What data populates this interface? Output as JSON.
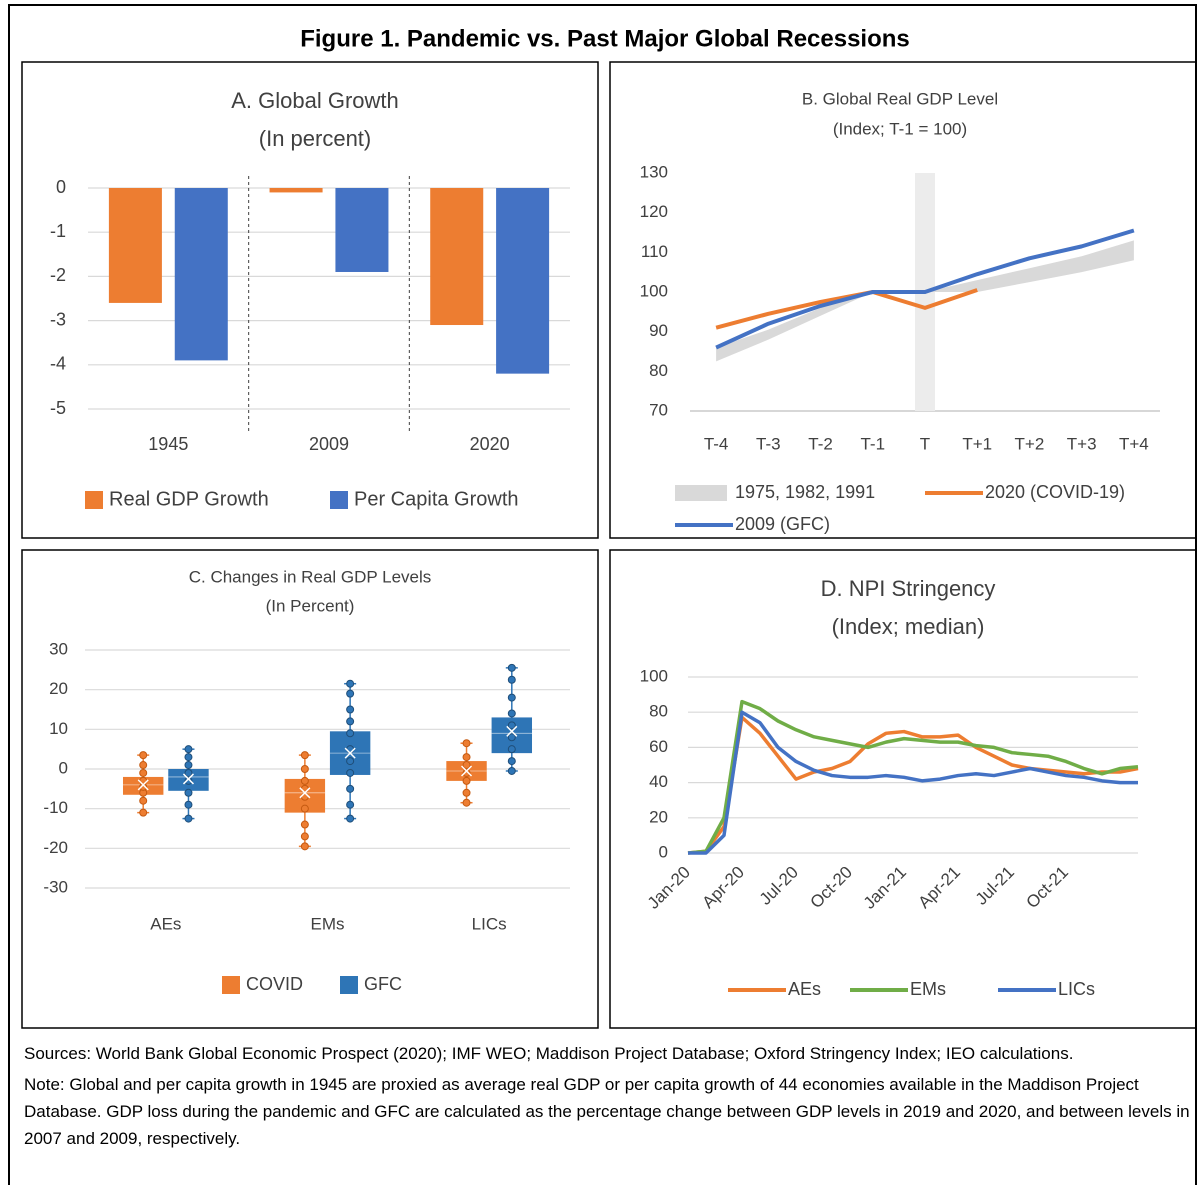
{
  "title": "Figure 1. Pandemic vs. Past Major Global Recessions",
  "chart_data": [
    {
      "type": "bar",
      "title": "A. Global Growth",
      "subtitle": "(In percent)",
      "categories": [
        "1945",
        "2009",
        "2020"
      ],
      "series": [
        {
          "name": "Real GDP Growth",
          "color": "#ED7D31",
          "values": [
            -2.6,
            -0.1,
            -3.1
          ]
        },
        {
          "name": "Per Capita Growth",
          "color": "#4472C4",
          "values": [
            -3.9,
            -1.9,
            -4.2
          ]
        }
      ],
      "ylim": [
        -5,
        0
      ],
      "yticks": [
        0,
        -1,
        -2,
        -3,
        -4,
        -5
      ],
      "grid": true,
      "dividers": true
    },
    {
      "type": "line",
      "title": "B. Global Real GDP Level",
      "subtitle": "(Index; T-1 = 100)",
      "categories": [
        "T-4",
        "T-3",
        "T-2",
        "T-1",
        "T",
        "T+1",
        "T+2",
        "T+3",
        "T+4"
      ],
      "series": [
        {
          "name": "1975, 1982, 1991",
          "color": "#D9D9D9",
          "low": [
            82.5,
            88,
            94,
            100,
            100,
            100,
            102.5,
            105,
            108
          ],
          "high": [
            86,
            90.5,
            96,
            100,
            100,
            103,
            106,
            109,
            113
          ]
        },
        {
          "name": "2020 (COVID-19)",
          "color": "#ED7D31",
          "values": [
            91,
            94.5,
            97.5,
            100,
            96,
            100.5,
            null,
            null,
            null
          ]
        },
        {
          "name": "2009 (GFC)",
          "color": "#4472C4",
          "values": [
            86,
            92,
            96.5,
            100,
            100,
            104.5,
            108.5,
            111.5,
            115.5
          ]
        }
      ],
      "ylim": [
        70,
        130
      ],
      "yticks": [
        70,
        80,
        90,
        100,
        110,
        120,
        130
      ],
      "grid": false,
      "highlight_index": 4
    },
    {
      "type": "box",
      "title": "C. Changes in Real GDP Levels",
      "subtitle": "(In Percent)",
      "categories": [
        "AEs",
        "EMs",
        "LICs"
      ],
      "series": [
        {
          "name": "COVID",
          "color": "#ED7D31",
          "values": [
            {
              "min": -11,
              "q1": -6.5,
              "median": -4,
              "q3": -2,
              "max": 3.5,
              "mean": -4,
              "points": [
                -11,
                -8,
                -6,
                -4.5,
                -3,
                -1,
                1,
                3.5
              ]
            },
            {
              "min": -19.5,
              "q1": -11,
              "median": -6,
              "q3": -2.5,
              "max": 3.5,
              "mean": -6,
              "points": [
                -19.5,
                -17,
                -14,
                -10,
                -7,
                -5,
                -3,
                0,
                3.5
              ]
            },
            {
              "min": -8.5,
              "q1": -3,
              "median": -0.5,
              "q3": 2,
              "max": 6.5,
              "mean": -0.5,
              "points": [
                -8.5,
                -6,
                -3,
                -1,
                1,
                3,
                6.5
              ]
            }
          ]
        },
        {
          "name": "GFC",
          "color": "#2E75B6",
          "values": [
            {
              "min": -12.5,
              "q1": -5.5,
              "median": -2,
              "q3": 0,
              "max": 5,
              "mean": -2.5,
              "points": [
                -12.5,
                -9,
                -6,
                -3,
                -1,
                1,
                3,
                5
              ]
            },
            {
              "min": -12.5,
              "q1": -1.5,
              "median": 4,
              "q3": 9.5,
              "max": 21.5,
              "mean": 4,
              "points": [
                -12.5,
                -9,
                -5,
                -1,
                2,
                5,
                9,
                12,
                15,
                19,
                21.5
              ]
            },
            {
              "min": -0.5,
              "q1": 4,
              "median": 9,
              "q3": 13,
              "max": 25.5,
              "mean": 9.5,
              "points": [
                -0.5,
                2,
                5,
                8,
                11,
                14,
                18,
                22.5,
                25.5
              ]
            }
          ]
        }
      ],
      "ylim": [
        -30,
        30
      ],
      "yticks": [
        30,
        20,
        10,
        0,
        -10,
        -20,
        -30
      ],
      "grid": true
    },
    {
      "type": "line",
      "title": "D. NPI Stringency",
      "subtitle": "(Index; median)",
      "x": [
        "Jan-20",
        "Feb-20",
        "Mar-20",
        "Apr-20",
        "May-20",
        "Jun-20",
        "Jul-20",
        "Aug-20",
        "Sep-20",
        "Oct-20",
        "Nov-20",
        "Dec-20",
        "Jan-21",
        "Feb-21",
        "Mar-21",
        "Apr-21",
        "May-21",
        "Jun-21",
        "Jul-21",
        "Aug-21",
        "Sep-21",
        "Oct-21",
        "Nov-21",
        "Dec-21",
        "Jan-22",
        "Feb-22"
      ],
      "xticks": [
        "Jan-20",
        "Apr-20",
        "Jul-20",
        "Oct-20",
        "Jan-21",
        "Apr-21",
        "Jul-21",
        "Oct-21"
      ],
      "series": [
        {
          "name": "AEs",
          "color": "#ED7D31",
          "values": [
            0,
            1,
            15,
            77,
            68,
            55,
            42,
            46,
            48,
            52,
            62,
            68,
            69,
            66,
            66,
            67,
            60,
            55,
            50,
            48,
            47,
            46,
            45,
            46,
            46,
            48
          ]
        },
        {
          "name": "EMs",
          "color": "#70AD47",
          "values": [
            0,
            1,
            20,
            86,
            82,
            75,
            70,
            66,
            64,
            62,
            60,
            63,
            65,
            64,
            63,
            63,
            61,
            60,
            57,
            56,
            55,
            52,
            48,
            45,
            48,
            49
          ]
        },
        {
          "name": "LICs",
          "color": "#4472C4",
          "values": [
            0,
            0,
            10,
            80,
            74,
            60,
            52,
            47,
            44,
            43,
            43,
            44,
            43,
            41,
            42,
            44,
            45,
            44,
            46,
            48,
            46,
            44,
            43,
            41,
            40,
            40
          ]
        }
      ],
      "ylim": [
        0,
        100
      ],
      "yticks": [
        0,
        20,
        40,
        60,
        80,
        100
      ],
      "grid": true
    }
  ],
  "sources": "Sources: World Bank Global Economic Prospect (2020); IMF WEO; Maddison Project Database; Oxford Stringency Index; IEO calculations.",
  "note": "Note: Global and per capita growth in 1945 are proxied as average real GDP or per capita growth of 44 economies available in the Maddison Project Database. GDP loss during the pandemic and GFC are calculated as the percentage change between GDP levels in 2019 and 2020, and between levels in 2007 and 2009, respectively."
}
